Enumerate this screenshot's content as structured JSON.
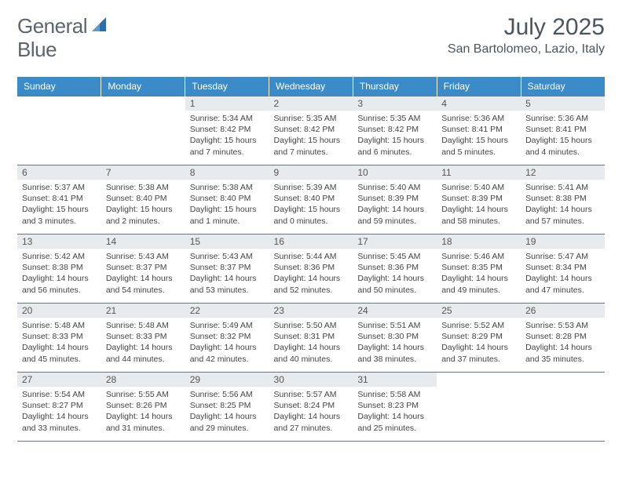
{
  "logo": {
    "text1": "General",
    "text2": "Blue"
  },
  "title": "July 2025",
  "location": "San Bartolomeo, Lazio, Italy",
  "colors": {
    "header_bg": "#3b8bc8",
    "daynum_bg": "#e8ebed",
    "border": "#6a7580",
    "text": "#4a5560"
  },
  "weekdays": [
    "Sunday",
    "Monday",
    "Tuesday",
    "Wednesday",
    "Thursday",
    "Friday",
    "Saturday"
  ],
  "weeks": [
    [
      {
        "n": "",
        "sr": "",
        "ss": "",
        "dl": ""
      },
      {
        "n": "",
        "sr": "",
        "ss": "",
        "dl": ""
      },
      {
        "n": "1",
        "sr": "Sunrise: 5:34 AM",
        "ss": "Sunset: 8:42 PM",
        "dl": "Daylight: 15 hours and 7 minutes."
      },
      {
        "n": "2",
        "sr": "Sunrise: 5:35 AM",
        "ss": "Sunset: 8:42 PM",
        "dl": "Daylight: 15 hours and 7 minutes."
      },
      {
        "n": "3",
        "sr": "Sunrise: 5:35 AM",
        "ss": "Sunset: 8:42 PM",
        "dl": "Daylight: 15 hours and 6 minutes."
      },
      {
        "n": "4",
        "sr": "Sunrise: 5:36 AM",
        "ss": "Sunset: 8:41 PM",
        "dl": "Daylight: 15 hours and 5 minutes."
      },
      {
        "n": "5",
        "sr": "Sunrise: 5:36 AM",
        "ss": "Sunset: 8:41 PM",
        "dl": "Daylight: 15 hours and 4 minutes."
      }
    ],
    [
      {
        "n": "6",
        "sr": "Sunrise: 5:37 AM",
        "ss": "Sunset: 8:41 PM",
        "dl": "Daylight: 15 hours and 3 minutes."
      },
      {
        "n": "7",
        "sr": "Sunrise: 5:38 AM",
        "ss": "Sunset: 8:40 PM",
        "dl": "Daylight: 15 hours and 2 minutes."
      },
      {
        "n": "8",
        "sr": "Sunrise: 5:38 AM",
        "ss": "Sunset: 8:40 PM",
        "dl": "Daylight: 15 hours and 1 minute."
      },
      {
        "n": "9",
        "sr": "Sunrise: 5:39 AM",
        "ss": "Sunset: 8:40 PM",
        "dl": "Daylight: 15 hours and 0 minutes."
      },
      {
        "n": "10",
        "sr": "Sunrise: 5:40 AM",
        "ss": "Sunset: 8:39 PM",
        "dl": "Daylight: 14 hours and 59 minutes."
      },
      {
        "n": "11",
        "sr": "Sunrise: 5:40 AM",
        "ss": "Sunset: 8:39 PM",
        "dl": "Daylight: 14 hours and 58 minutes."
      },
      {
        "n": "12",
        "sr": "Sunrise: 5:41 AM",
        "ss": "Sunset: 8:38 PM",
        "dl": "Daylight: 14 hours and 57 minutes."
      }
    ],
    [
      {
        "n": "13",
        "sr": "Sunrise: 5:42 AM",
        "ss": "Sunset: 8:38 PM",
        "dl": "Daylight: 14 hours and 56 minutes."
      },
      {
        "n": "14",
        "sr": "Sunrise: 5:43 AM",
        "ss": "Sunset: 8:37 PM",
        "dl": "Daylight: 14 hours and 54 minutes."
      },
      {
        "n": "15",
        "sr": "Sunrise: 5:43 AM",
        "ss": "Sunset: 8:37 PM",
        "dl": "Daylight: 14 hours and 53 minutes."
      },
      {
        "n": "16",
        "sr": "Sunrise: 5:44 AM",
        "ss": "Sunset: 8:36 PM",
        "dl": "Daylight: 14 hours and 52 minutes."
      },
      {
        "n": "17",
        "sr": "Sunrise: 5:45 AM",
        "ss": "Sunset: 8:36 PM",
        "dl": "Daylight: 14 hours and 50 minutes."
      },
      {
        "n": "18",
        "sr": "Sunrise: 5:46 AM",
        "ss": "Sunset: 8:35 PM",
        "dl": "Daylight: 14 hours and 49 minutes."
      },
      {
        "n": "19",
        "sr": "Sunrise: 5:47 AM",
        "ss": "Sunset: 8:34 PM",
        "dl": "Daylight: 14 hours and 47 minutes."
      }
    ],
    [
      {
        "n": "20",
        "sr": "Sunrise: 5:48 AM",
        "ss": "Sunset: 8:33 PM",
        "dl": "Daylight: 14 hours and 45 minutes."
      },
      {
        "n": "21",
        "sr": "Sunrise: 5:48 AM",
        "ss": "Sunset: 8:33 PM",
        "dl": "Daylight: 14 hours and 44 minutes."
      },
      {
        "n": "22",
        "sr": "Sunrise: 5:49 AM",
        "ss": "Sunset: 8:32 PM",
        "dl": "Daylight: 14 hours and 42 minutes."
      },
      {
        "n": "23",
        "sr": "Sunrise: 5:50 AM",
        "ss": "Sunset: 8:31 PM",
        "dl": "Daylight: 14 hours and 40 minutes."
      },
      {
        "n": "24",
        "sr": "Sunrise: 5:51 AM",
        "ss": "Sunset: 8:30 PM",
        "dl": "Daylight: 14 hours and 38 minutes."
      },
      {
        "n": "25",
        "sr": "Sunrise: 5:52 AM",
        "ss": "Sunset: 8:29 PM",
        "dl": "Daylight: 14 hours and 37 minutes."
      },
      {
        "n": "26",
        "sr": "Sunrise: 5:53 AM",
        "ss": "Sunset: 8:28 PM",
        "dl": "Daylight: 14 hours and 35 minutes."
      }
    ],
    [
      {
        "n": "27",
        "sr": "Sunrise: 5:54 AM",
        "ss": "Sunset: 8:27 PM",
        "dl": "Daylight: 14 hours and 33 minutes."
      },
      {
        "n": "28",
        "sr": "Sunrise: 5:55 AM",
        "ss": "Sunset: 8:26 PM",
        "dl": "Daylight: 14 hours and 31 minutes."
      },
      {
        "n": "29",
        "sr": "Sunrise: 5:56 AM",
        "ss": "Sunset: 8:25 PM",
        "dl": "Daylight: 14 hours and 29 minutes."
      },
      {
        "n": "30",
        "sr": "Sunrise: 5:57 AM",
        "ss": "Sunset: 8:24 PM",
        "dl": "Daylight: 14 hours and 27 minutes."
      },
      {
        "n": "31",
        "sr": "Sunrise: 5:58 AM",
        "ss": "Sunset: 8:23 PM",
        "dl": "Daylight: 14 hours and 25 minutes."
      },
      {
        "n": "",
        "sr": "",
        "ss": "",
        "dl": ""
      },
      {
        "n": "",
        "sr": "",
        "ss": "",
        "dl": ""
      }
    ]
  ]
}
